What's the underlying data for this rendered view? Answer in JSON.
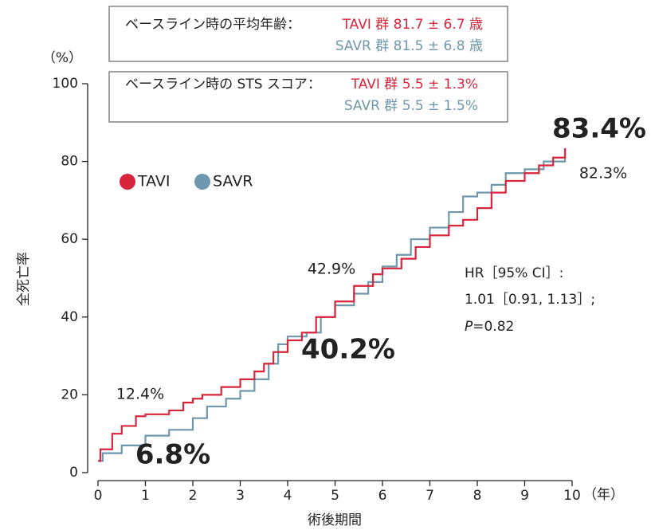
{
  "chart_data": {
    "type": "line",
    "y_unit": "（%）",
    "y_label": "全死亡率",
    "x_label": "術後期間",
    "x_unit": "（年）",
    "xlim": [
      0,
      10
    ],
    "xticks": [
      0,
      1,
      2,
      3,
      4,
      5,
      6,
      7,
      8,
      9,
      10
    ],
    "ylim": [
      0,
      100
    ],
    "yticks": [
      0,
      20,
      40,
      60,
      80,
      100
    ],
    "series": [
      {
        "name": "TAVI",
        "color": "#d9253c",
        "x": [
          0,
          0.05,
          0.3,
          0.5,
          0.8,
          1.0,
          1.5,
          1.8,
          2.0,
          2.2,
          2.6,
          3.0,
          3.3,
          3.5,
          3.7,
          4.0,
          4.3,
          4.6,
          5.0,
          5.4,
          5.8,
          6.0,
          6.4,
          6.7,
          7.0,
          7.4,
          7.7,
          8.0,
          8.3,
          8.6,
          9.0,
          9.3,
          9.6,
          9.85
        ],
        "values": [
          3,
          6,
          10,
          12,
          14.5,
          15,
          16,
          18,
          19,
          20,
          22,
          24,
          26,
          28,
          31,
          34,
          36,
          40,
          44,
          48,
          51,
          52.5,
          55,
          58,
          61,
          63.5,
          65,
          68,
          72,
          75,
          77,
          79,
          81,
          83.4
        ]
      },
      {
        "name": "SAVR",
        "color": "#6f97ad",
        "x": [
          0,
          0.1,
          0.5,
          1.0,
          1.5,
          2.0,
          2.3,
          2.7,
          3.0,
          3.3,
          3.6,
          3.8,
          4.0,
          4.4,
          4.7,
          5.0,
          5.4,
          5.7,
          6.0,
          6.3,
          6.6,
          7.0,
          7.4,
          7.7,
          8.0,
          8.3,
          8.6,
          9.0,
          9.4,
          9.85
        ],
        "values": [
          3,
          5,
          7,
          9.5,
          11,
          14,
          17,
          19,
          21,
          24,
          28,
          33,
          35,
          36,
          40,
          43,
          46,
          49,
          53,
          56,
          60,
          63,
          67,
          71,
          72,
          74,
          77,
          78,
          80,
          82.3
        ]
      }
    ],
    "annotations": [
      {
        "text": "83.4%",
        "color": "#d9253c"
      },
      {
        "text": "82.3%",
        "color": "#6f97ad"
      },
      {
        "text": "42.9%",
        "color": "#6f97ad"
      },
      {
        "text": "40.2%",
        "color": "#d9253c"
      },
      {
        "text": "12.4%",
        "color": "#6f97ad"
      },
      {
        "text": "6.8%",
        "color": "#d9253c"
      }
    ],
    "info_boxes": [
      {
        "label": "ベースライン時の平均年齢：",
        "tavi": "TAVI 群  81.7 ± 6.7 歳",
        "savr": "SAVR 群  81.5 ± 6.8 歳"
      },
      {
        "label": "ベースライン時の STS スコア：",
        "tavi": "TAVI 群  5.5 ± 1.3%",
        "savr": "SAVR 群  5.5 ± 1.5%"
      }
    ],
    "stats": {
      "line1": "HR［95% CI］:",
      "line2": "1.01［0.91, 1.13］;",
      "p_symbol": "P",
      "p_value": "=0.82"
    }
  }
}
